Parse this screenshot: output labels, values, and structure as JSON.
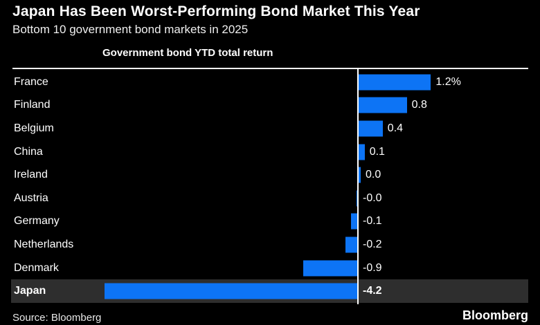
{
  "header": {
    "title": "Japan Has Been Worst-Performing Bond Market This Year",
    "subtitle": "Bottom 10 government bond markets in 2025"
  },
  "chart_data": {
    "type": "bar",
    "orientation": "horizontal",
    "title": "Government bond YTD total return",
    "unit": "%",
    "categories": [
      "France",
      "Finland",
      "Belgium",
      "China",
      "Ireland",
      "Austria",
      "Germany",
      "Netherlands",
      "Denmark",
      "Japan"
    ],
    "values": [
      1.2,
      0.8,
      0.4,
      0.1,
      0.0,
      0.0,
      -0.1,
      -0.2,
      -0.9,
      -4.2
    ],
    "value_labels": [
      "1.2%",
      "0.8",
      "0.4",
      "0.1",
      "0.0",
      "-0.0",
      "-0.1",
      "-0.2",
      "-0.9",
      "-4.2"
    ],
    "highlighted_category": "Japan",
    "bar_color": "#0d74f5",
    "highlight_band_color": "#2e2e2e",
    "zero_line_color": "#ffffff",
    "xlim": [
      -4.6,
      2.8
    ],
    "grid": false,
    "legend": false
  },
  "footer": {
    "source": "Source: Bloomberg",
    "brand": "Bloomberg"
  }
}
